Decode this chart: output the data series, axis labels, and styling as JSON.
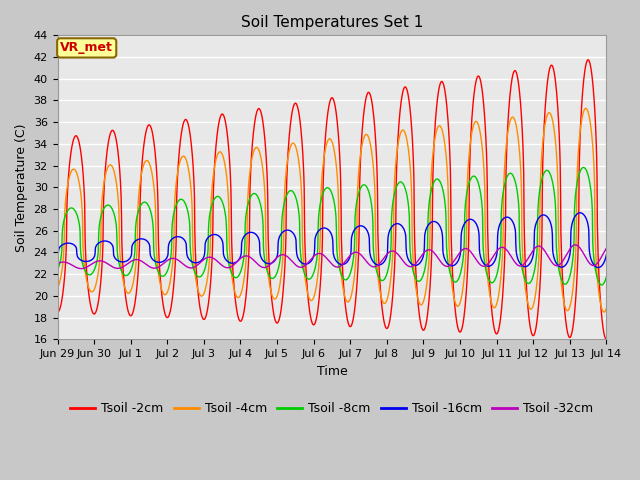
{
  "title": "Soil Temperatures Set 1",
  "xlabel": "Time",
  "ylabel": "Soil Temperature (C)",
  "ylim": [
    16,
    44
  ],
  "yticks": [
    16,
    18,
    20,
    22,
    24,
    26,
    28,
    30,
    32,
    34,
    36,
    38,
    40,
    42,
    44
  ],
  "background_color": "#c8c8c8",
  "plot_bg_color": "#e8e8e8",
  "line_colors": [
    "#ff0000",
    "#ff8c00",
    "#00cc00",
    "#0000ee",
    "#bb00bb"
  ],
  "line_labels": [
    "Tsoil -2cm",
    "Tsoil -4cm",
    "Tsoil -8cm",
    "Tsoil -16cm",
    "Tsoil -32cm"
  ],
  "xtick_labels": [
    "Jun 29",
    "Jun 30",
    "Jul 1",
    "Jul 2",
    "Jul 3",
    "Jul 4",
    "Jul 5",
    "Jul 6",
    "Jul 7",
    "Jul 8",
    "Jul 9",
    "Jul 10",
    "Jul 11",
    "Jul 12",
    "Jul 13",
    "Jul 14"
  ],
  "n_days": 16,
  "annotation_text": "VR_met",
  "annotation_bg": "#ffff99",
  "annotation_border": "#886600",
  "title_fontsize": 11,
  "label_fontsize": 9,
  "tick_fontsize": 8,
  "legend_fontsize": 9
}
